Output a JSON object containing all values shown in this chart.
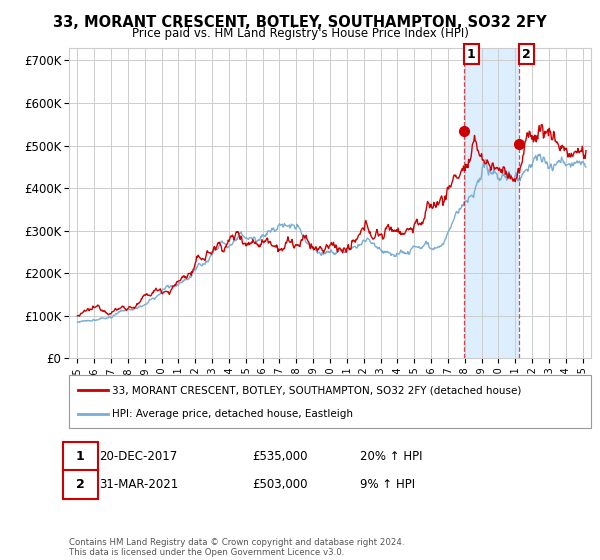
{
  "title": "33, MORANT CRESCENT, BOTLEY, SOUTHAMPTON, SO32 2FY",
  "subtitle": "Price paid vs. HM Land Registry's House Price Index (HPI)",
  "ylabel_ticks": [
    "£0",
    "£100K",
    "£200K",
    "£300K",
    "£400K",
    "£500K",
    "£600K",
    "£700K"
  ],
  "ytick_values": [
    0,
    100000,
    200000,
    300000,
    400000,
    500000,
    600000,
    700000
  ],
  "ylim": [
    0,
    730000
  ],
  "xlim_start": 1994.5,
  "xlim_end": 2025.5,
  "legend_label_red": "33, MORANT CRESCENT, BOTLEY, SOUTHAMPTON, SO32 2FY (detached house)",
  "legend_label_blue": "HPI: Average price, detached house, Eastleigh",
  "transaction1_label": "1",
  "transaction1_date": "20-DEC-2017",
  "transaction1_price": "£535,000",
  "transaction1_hpi": "20% ↑ HPI",
  "transaction1_x": 2017.97,
  "transaction1_y": 535000,
  "transaction2_label": "2",
  "transaction2_date": "31-MAR-2021",
  "transaction2_price": "£503,000",
  "transaction2_hpi": "9% ↑ HPI",
  "transaction2_x": 2021.25,
  "transaction2_y": 503000,
  "vline1_x": 2017.97,
  "vline2_x": 2021.25,
  "footer": "Contains HM Land Registry data © Crown copyright and database right 2024.\nThis data is licensed under the Open Government Licence v3.0.",
  "red_color": "#cc0000",
  "blue_color": "#7aadd4",
  "highlight_color": "#ddeeff",
  "grid_color": "#cccccc",
  "background_color": "#ffffff"
}
